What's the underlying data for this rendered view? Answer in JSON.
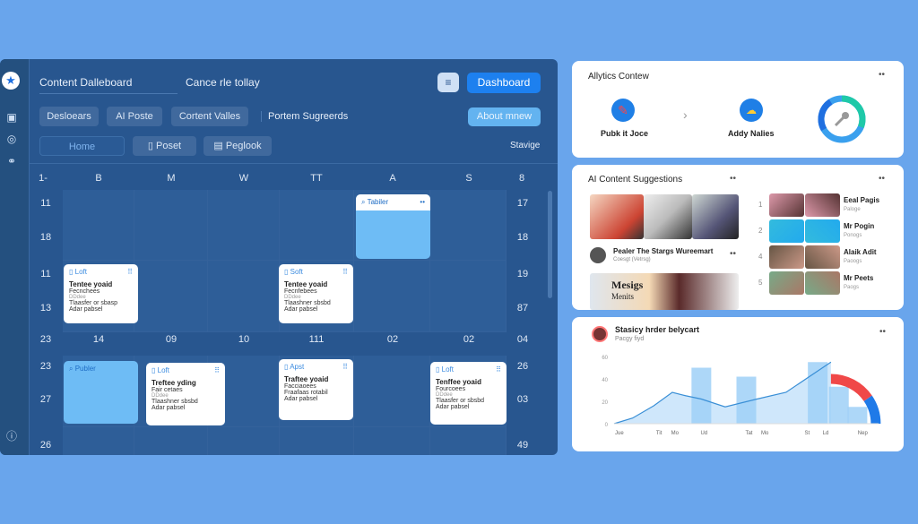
{
  "sidebar": {
    "icons": [
      "star-logo-icon",
      "save-icon",
      "clock-icon",
      "link-icon",
      "info-icon"
    ]
  },
  "header": {
    "title": "Content Dalleboard",
    "subtitle": "Cance rle tollay",
    "menu_icon": "≡",
    "dashboard_button": "Dashboard"
  },
  "filters": {
    "items": [
      "Desloears",
      "AI Poste",
      "Cortent Valles"
    ],
    "text": "Portem Sugreerds",
    "about_button": "About mnew"
  },
  "nav": {
    "home": "Home",
    "poset": "Poset",
    "peglook": "Peglook",
    "right": "Stavige"
  },
  "calendar": {
    "headers": [
      "1-",
      "B",
      "M",
      "W",
      "TT",
      "A",
      "S",
      "8"
    ],
    "left_numbers": [
      "11",
      "18",
      "11",
      "13",
      "23",
      "23",
      "27",
      "26"
    ],
    "right_numbers": [
      "17",
      "18",
      "19",
      "87",
      "04",
      "26",
      "03",
      "49"
    ],
    "mid_row": [
      "14",
      "09",
      "10",
      "111",
      "02",
      "02"
    ],
    "cards": [
      {
        "tag": "Loft",
        "title": "Tentee yoaid",
        "sub": "Fecnchees",
        "meta": "DDdee",
        "l1": "Tlaasfer or sbasp",
        "l2": "Adar pabsel"
      },
      {
        "tag": "Soft",
        "title": "Tentee yoaid",
        "sub": "Fecnfebees",
        "meta": "DDdee",
        "l1": "Tlaashner sbsbd",
        "l2": "Adar pabsel"
      },
      {
        "tag": "Loft",
        "title": "Treftee yding",
        "sub": "Fair cetaes",
        "meta": "DDdee",
        "l1": "Tlaashner sbsbd",
        "l2": "Adar pabsel"
      },
      {
        "tag": "Apst",
        "title": "Traftee yoaid",
        "sub": "Facciaoees",
        "meta": "",
        "l1": "Fraafaas rotabil",
        "l2": "Adar pabsel"
      },
      {
        "tag": "Loft",
        "title": "Tenffee yoaid",
        "sub": "Fourcoees",
        "meta": "DDdee",
        "l1": "Tlaasfer or sbsbd",
        "l2": "Adar pabsel"
      }
    ],
    "highlight_cards": [
      {
        "tag": "Tabiler"
      },
      {
        "tag": "Publer"
      }
    ]
  },
  "analytics": {
    "title": "Allytics Contew",
    "item1": "Pubk it Joce",
    "item2": "Addy Nalies",
    "donut": {
      "segments": [
        0.3,
        0.2,
        0.5
      ],
      "colors": [
        "#1f6fe0",
        "#1fc9a8",
        "#3aa0ee"
      ]
    }
  },
  "suggestions": {
    "title": "AI Content Suggestions",
    "post_title": "Pealer The Stargs Wureemart",
    "post_sub": "Coesgt (Vetrsg)",
    "image_text1": "Mesigs",
    "image_text2": "Menits",
    "list": [
      {
        "n": "1",
        "title": "Eeal Pagis",
        "sub": "Paloge"
      },
      {
        "n": "2",
        "title": "Mr Pogin",
        "sub": "Ponogs"
      },
      {
        "n": "4",
        "title": "Alaik Adit",
        "sub": "Paoogs"
      },
      {
        "n": "5",
        "title": "Mr Peets",
        "sub": "Paogs"
      }
    ]
  },
  "chart_card": {
    "title": "Stasicy hrder belycart",
    "sub": "Pacgy fiyd"
  },
  "chart_data": {
    "type": "bar",
    "ylim": [
      0,
      60
    ],
    "yticks": [
      "0",
      "20",
      "40",
      "60"
    ],
    "categories": [
      "Jue",
      "Tit",
      "Mo",
      "Ud",
      "Tat",
      "Mo",
      "St",
      "Ld",
      "Nep"
    ],
    "line": [
      0,
      5,
      16,
      28,
      25,
      22,
      15,
      22,
      28,
      55
    ],
    "line_x": [
      0,
      0.07,
      0.15,
      0.22,
      0.27,
      0.33,
      0.42,
      0.54,
      0.65,
      0.82
    ],
    "bars": [
      {
        "x": 0.33,
        "value": 50
      },
      {
        "x": 0.5,
        "value": 42
      },
      {
        "x": 0.77,
        "value": 55
      },
      {
        "x": 0.85,
        "value": 33
      },
      {
        "x": 0.92,
        "value": 15
      }
    ],
    "bar_color": "#9fd0f7",
    "line_color": "#3a8fd6",
    "arc_colors": [
      "#f04848",
      "#1f7ae8"
    ]
  }
}
